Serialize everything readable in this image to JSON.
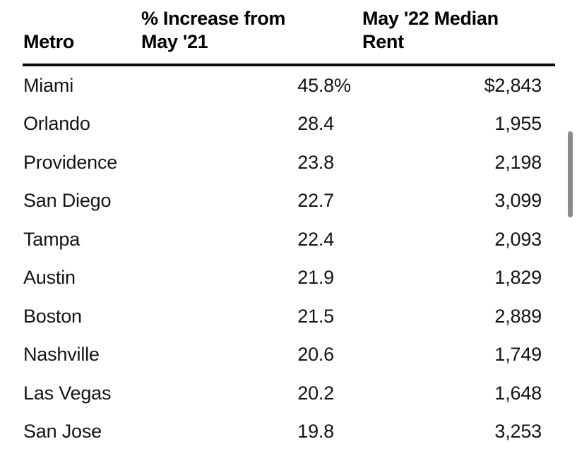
{
  "chart_data": {
    "type": "table",
    "columns": [
      {
        "id": "metro",
        "label": "Metro",
        "lines": [
          "Metro"
        ],
        "align": "left"
      },
      {
        "id": "increase_pct",
        "label": "% Increase from May '21",
        "lines": [
          "% Increase from",
          "May '21"
        ],
        "align": "right"
      },
      {
        "id": "median_rent",
        "label": "May '22 Median Rent",
        "lines": [
          "May '22 Median",
          "Rent"
        ],
        "align": "right"
      }
    ],
    "rows": [
      {
        "metro": "Miami",
        "increase_display": "45.8",
        "increase_suffix": "%",
        "increase_value": 45.8,
        "rent_display": "$2,843",
        "rent_value": 2843
      },
      {
        "metro": "Orlando",
        "increase_display": "28.4",
        "increase_suffix": "",
        "increase_value": 28.4,
        "rent_display": "1,955",
        "rent_value": 1955
      },
      {
        "metro": "Providence",
        "increase_display": "23.8",
        "increase_suffix": "",
        "increase_value": 23.8,
        "rent_display": "2,198",
        "rent_value": 2198
      },
      {
        "metro": "San Diego",
        "increase_display": "22.7",
        "increase_suffix": "",
        "increase_value": 22.7,
        "rent_display": "3,099",
        "rent_value": 3099
      },
      {
        "metro": "Tampa",
        "increase_display": "22.4",
        "increase_suffix": "",
        "increase_value": 22.4,
        "rent_display": "2,093",
        "rent_value": 2093
      },
      {
        "metro": "Austin",
        "increase_display": "21.9",
        "increase_suffix": "",
        "increase_value": 21.9,
        "rent_display": "1,829",
        "rent_value": 1829
      },
      {
        "metro": "Boston",
        "increase_display": "21.5",
        "increase_suffix": "",
        "increase_value": 21.5,
        "rent_display": "2,889",
        "rent_value": 2889
      },
      {
        "metro": "Nashville",
        "increase_display": "20.6",
        "increase_suffix": "",
        "increase_value": 20.6,
        "rent_display": "1,749",
        "rent_value": 1749
      },
      {
        "metro": "Las Vegas",
        "increase_display": "20.2",
        "increase_suffix": "",
        "increase_value": 20.2,
        "rent_display": "1,648",
        "rent_value": 1648
      },
      {
        "metro": "San Jose",
        "increase_display": "19.8",
        "increase_suffix": "",
        "increase_value": 19.8,
        "rent_display": "3,253",
        "rent_value": 3253
      }
    ]
  },
  "colors": {
    "background": "#ffffff",
    "header_text": "#000000",
    "row_text": "#141414",
    "header_rule": "#0b0b0b",
    "scrollbar_thumb": "#8a8a8a"
  }
}
